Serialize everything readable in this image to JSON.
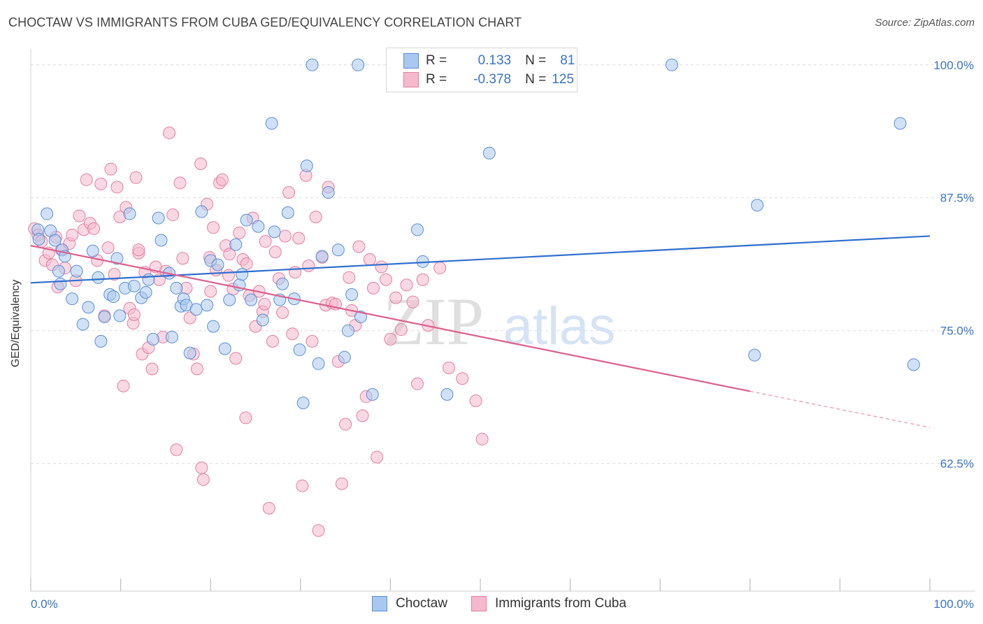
{
  "title": "CHOCTAW VS IMMIGRANTS FROM CUBA GED/EQUIVALENCY CORRELATION CHART",
  "source": "Source: ZipAtlas.com",
  "watermark": {
    "zip": "ZIP",
    "atlas": "atlas"
  },
  "legend": [
    {
      "r_label": "R =",
      "r_value": "0.133",
      "n_label": "N =",
      "n_value": "81",
      "color": "#a9c8f0",
      "border": "#5b8fd6"
    },
    {
      "r_label": "R =",
      "r_value": "-0.378",
      "n_label": "N =",
      "n_value": "125",
      "color": "#f6b8cc",
      "border": "#e37fa0"
    }
  ],
  "chart_data": {
    "type": "scatter",
    "title": "CHOCTAW VS IMMIGRANTS FROM CUBA GED/EQUIVALENCY CORRELATION CHART",
    "xlabel": "",
    "ylabel": "GED/Equivalency",
    "xlim": [
      0,
      100
    ],
    "ylim": [
      50.5,
      101.5
    ],
    "x_tick_labels": [
      "0.0%",
      "100.0%"
    ],
    "y_ticks": [
      62.5,
      75.0,
      87.5,
      100.0
    ],
    "y_tick_labels": [
      "62.5%",
      "75.0%",
      "87.5%",
      "100.0%"
    ],
    "grid": "horizontal dashed",
    "legend_placement": "top-center",
    "series": [
      {
        "name": "Choctaw",
        "color": "#a9c8f0",
        "stroke": "#5b8fd6",
        "trend": {
          "x0": 0,
          "y0": 79.5,
          "x1": 100,
          "y1": 83.9,
          "color": "#2f6fcd"
        },
        "points": [
          [
            0.8,
            84.5
          ],
          [
            0.9,
            83.6
          ],
          [
            1.8,
            86.0
          ],
          [
            2.2,
            84.4
          ],
          [
            2.7,
            83.5
          ],
          [
            3.5,
            82.6
          ],
          [
            3.1,
            80.6
          ],
          [
            3.3,
            79.4
          ],
          [
            3.8,
            82.0
          ],
          [
            4.6,
            78.0
          ],
          [
            5.1,
            80.6
          ],
          [
            5.8,
            75.6
          ],
          [
            6.4,
            77.2
          ],
          [
            6.9,
            82.5
          ],
          [
            7.5,
            80.0
          ],
          [
            7.8,
            74.0
          ],
          [
            8.2,
            76.3
          ],
          [
            8.8,
            78.4
          ],
          [
            9.2,
            78.2
          ],
          [
            9.6,
            81.8
          ],
          [
            9.9,
            76.4
          ],
          [
            10.5,
            79.0
          ],
          [
            11.0,
            86.0
          ],
          [
            11.5,
            79.2
          ],
          [
            12.3,
            78.1
          ],
          [
            12.8,
            78.6
          ],
          [
            13.1,
            79.8
          ],
          [
            13.6,
            74.2
          ],
          [
            14.2,
            85.6
          ],
          [
            14.5,
            83.5
          ],
          [
            15.4,
            80.4
          ],
          [
            15.7,
            74.4
          ],
          [
            16.2,
            79.0
          ],
          [
            16.7,
            77.3
          ],
          [
            17.0,
            78.0
          ],
          [
            17.3,
            77.4
          ],
          [
            17.7,
            72.9
          ],
          [
            18.4,
            77.0
          ],
          [
            19.0,
            86.2
          ],
          [
            19.6,
            77.4
          ],
          [
            20.0,
            81.6
          ],
          [
            20.3,
            75.4
          ],
          [
            20.8,
            81.2
          ],
          [
            21.6,
            73.3
          ],
          [
            22.1,
            77.9
          ],
          [
            22.8,
            83.1
          ],
          [
            23.2,
            79.3
          ],
          [
            23.5,
            80.3
          ],
          [
            24.0,
            85.4
          ],
          [
            24.5,
            77.9
          ],
          [
            25.3,
            84.8
          ],
          [
            25.8,
            76.0
          ],
          [
            26.8,
            94.5
          ],
          [
            27.1,
            84.3
          ],
          [
            27.7,
            77.9
          ],
          [
            28.0,
            79.4
          ],
          [
            28.6,
            86.1
          ],
          [
            29.3,
            78.0
          ],
          [
            29.9,
            73.2
          ],
          [
            30.3,
            68.2
          ],
          [
            30.7,
            90.5
          ],
          [
            31.3,
            100.0
          ],
          [
            32.0,
            71.9
          ],
          [
            32.4,
            82.0
          ],
          [
            33.1,
            88.0
          ],
          [
            34.2,
            82.6
          ],
          [
            34.9,
            72.5
          ],
          [
            35.3,
            75.0
          ],
          [
            35.7,
            78.4
          ],
          [
            36.4,
            100.0
          ],
          [
            36.7,
            76.3
          ],
          [
            38.0,
            69.0
          ],
          [
            43.0,
            84.5
          ],
          [
            43.6,
            81.5
          ],
          [
            46.3,
            69.0
          ],
          [
            51.0,
            91.7
          ],
          [
            71.3,
            100.0
          ],
          [
            80.8,
            86.8
          ],
          [
            80.5,
            72.7
          ],
          [
            96.7,
            94.5
          ],
          [
            98.2,
            71.8
          ]
        ]
      },
      {
        "name": "Immigrants from Cuba",
        "color": "#f6b8cc",
        "stroke": "#e37fa0",
        "trend": {
          "x0": 0,
          "y0": 83.0,
          "x1": 80.0,
          "y1": 69.3,
          "dash_x1": 100,
          "dash_y1": 65.9,
          "color": "#de5f8c"
        },
        "points": [
          [
            0.4,
            84.6
          ],
          [
            0.8,
            84.0
          ],
          [
            1.2,
            83.4
          ],
          [
            1.6,
            81.6
          ],
          [
            2.0,
            82.3
          ],
          [
            2.4,
            81.2
          ],
          [
            2.8,
            83.8
          ],
          [
            3.0,
            79.1
          ],
          [
            3.4,
            82.6
          ],
          [
            3.8,
            80.9
          ],
          [
            4.3,
            83.2
          ],
          [
            4.6,
            84.0
          ],
          [
            5.0,
            79.7
          ],
          [
            5.4,
            85.8
          ],
          [
            5.9,
            84.5
          ],
          [
            6.2,
            89.2
          ],
          [
            6.6,
            85.1
          ],
          [
            7.0,
            84.6
          ],
          [
            7.4,
            81.6
          ],
          [
            7.8,
            88.8
          ],
          [
            8.2,
            76.4
          ],
          [
            8.6,
            82.8
          ],
          [
            8.9,
            90.2
          ],
          [
            9.3,
            80.3
          ],
          [
            9.6,
            88.5
          ],
          [
            9.9,
            85.7
          ],
          [
            10.3,
            69.8
          ],
          [
            10.6,
            86.6
          ],
          [
            11.0,
            77.1
          ],
          [
            11.4,
            75.7
          ],
          [
            11.7,
            89.4
          ],
          [
            12.0,
            82.3
          ],
          [
            12.4,
            72.8
          ],
          [
            12.7,
            80.5
          ],
          [
            13.1,
            73.4
          ],
          [
            13.5,
            71.4
          ],
          [
            13.9,
            81.0
          ],
          [
            14.3,
            79.8
          ],
          [
            14.7,
            74.4
          ],
          [
            15.0,
            80.6
          ],
          [
            15.4,
            93.6
          ],
          [
            15.8,
            85.9
          ],
          [
            16.2,
            63.8
          ],
          [
            16.6,
            88.9
          ],
          [
            16.9,
            81.8
          ],
          [
            17.3,
            79.0
          ],
          [
            17.7,
            76.2
          ],
          [
            18.1,
            72.8
          ],
          [
            18.5,
            71.4
          ],
          [
            18.9,
            90.7
          ],
          [
            19.2,
            61.0
          ],
          [
            19.6,
            86.9
          ],
          [
            19.9,
            81.9
          ],
          [
            20.3,
            84.7
          ],
          [
            20.6,
            80.7
          ],
          [
            21.0,
            88.9
          ],
          [
            21.3,
            89.2
          ],
          [
            21.7,
            83.0
          ],
          [
            22.1,
            82.2
          ],
          [
            22.5,
            78.9
          ],
          [
            22.8,
            72.4
          ],
          [
            23.2,
            84.2
          ],
          [
            23.6,
            81.7
          ],
          [
            23.9,
            66.8
          ],
          [
            24.3,
            78.3
          ],
          [
            24.7,
            85.6
          ],
          [
            25.0,
            75.4
          ],
          [
            25.4,
            78.7
          ],
          [
            25.8,
            76.8
          ],
          [
            26.1,
            83.4
          ],
          [
            26.5,
            58.3
          ],
          [
            26.9,
            74.0
          ],
          [
            27.2,
            82.4
          ],
          [
            27.6,
            79.9
          ],
          [
            28.0,
            76.7
          ],
          [
            28.3,
            83.9
          ],
          [
            28.7,
            88.0
          ],
          [
            29.1,
            74.7
          ],
          [
            29.4,
            80.5
          ],
          [
            29.8,
            83.7
          ],
          [
            30.2,
            60.4
          ],
          [
            30.6,
            89.6
          ],
          [
            30.9,
            81.1
          ],
          [
            31.3,
            74.0
          ],
          [
            31.7,
            85.7
          ],
          [
            32.0,
            56.2
          ],
          [
            32.4,
            81.9
          ],
          [
            32.8,
            77.4
          ],
          [
            33.1,
            88.5
          ],
          [
            33.5,
            77.6
          ],
          [
            33.9,
            77.5
          ],
          [
            34.2,
            72.1
          ],
          [
            34.6,
            60.6
          ],
          [
            35.0,
            66.2
          ],
          [
            35.4,
            80.0
          ],
          [
            35.7,
            76.9
          ],
          [
            36.1,
            75.5
          ],
          [
            36.5,
            82.9
          ],
          [
            36.9,
            67.0
          ],
          [
            37.3,
            68.8
          ],
          [
            37.7,
            81.7
          ],
          [
            38.1,
            79.0
          ],
          [
            38.5,
            63.1
          ],
          [
            39.0,
            81.0
          ],
          [
            39.5,
            79.8
          ],
          [
            40.0,
            74.2
          ],
          [
            40.6,
            78.1
          ],
          [
            41.2,
            75.1
          ],
          [
            41.8,
            79.3
          ],
          [
            42.5,
            77.7
          ],
          [
            43.0,
            70.0
          ],
          [
            43.6,
            79.8
          ],
          [
            44.2,
            75.5
          ],
          [
            45.5,
            80.9
          ],
          [
            46.5,
            71.5
          ],
          [
            48.0,
            70.5
          ],
          [
            49.5,
            68.4
          ],
          [
            50.2,
            64.8
          ],
          [
            20.0,
            78.7
          ],
          [
            19.0,
            62.1
          ],
          [
            22.0,
            80.2
          ],
          [
            24.0,
            81.3
          ],
          [
            26.0,
            77.5
          ],
          [
            12.0,
            82.6
          ],
          [
            11.5,
            76.5
          ]
        ]
      }
    ]
  }
}
